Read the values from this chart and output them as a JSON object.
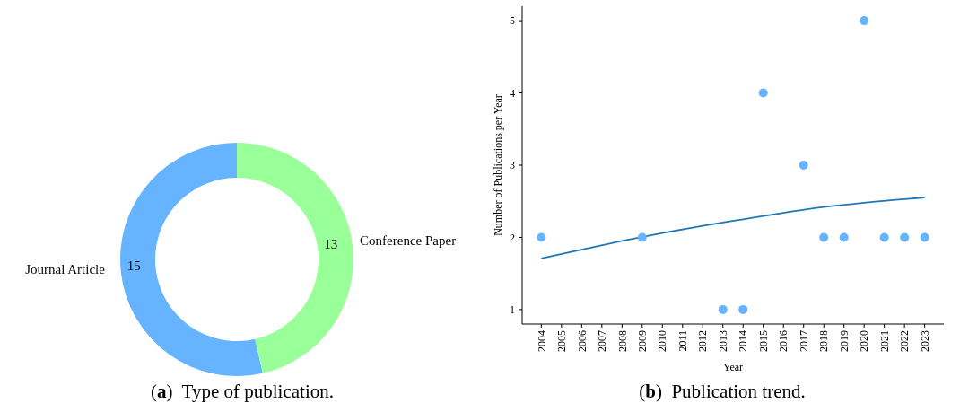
{
  "chart_data": [
    {
      "type": "donut",
      "title": "(a) Type of publication.",
      "categories": [
        "Journal Article",
        "Conference Paper"
      ],
      "values": [
        15,
        13
      ],
      "colors": [
        "#66b3ff",
        "#99ff99"
      ],
      "data_labels": true
    },
    {
      "type": "scatter",
      "title": "(b) Publication trend.",
      "xlabel": "Year",
      "ylabel": "Number of Publications per Year",
      "series": [
        {
          "type": "scatter",
          "color": "#66b3ff",
          "x": [
            2004,
            2009,
            2013,
            2014,
            2015,
            2017,
            2018,
            2019,
            2020,
            2021,
            2022,
            2023
          ],
          "values": [
            2,
            2,
            1,
            1,
            4,
            3,
            2,
            2,
            5,
            2,
            2,
            2
          ]
        },
        {
          "type": "line",
          "color": "#1f77b4",
          "marker": "none",
          "x": [
            2004,
            2006,
            2008,
            2010,
            2012,
            2014,
            2016,
            2018,
            2020,
            2022,
            2023
          ],
          "values": [
            1.71,
            1.83,
            1.95,
            2.06,
            2.16,
            2.25,
            2.34,
            2.42,
            2.48,
            2.53,
            2.55
          ]
        }
      ],
      "xlim": [
        2003.05,
        2023.95
      ],
      "ylim": [
        0.8,
        5.2
      ],
      "xticks": [
        2004,
        2005,
        2006,
        2007,
        2008,
        2009,
        2010,
        2011,
        2012,
        2013,
        2014,
        2015,
        2016,
        2017,
        2018,
        2019,
        2020,
        2021,
        2022,
        2023
      ],
      "yticks": [
        1,
        2,
        3,
        4,
        5
      ],
      "marker": "circle"
    }
  ]
}
